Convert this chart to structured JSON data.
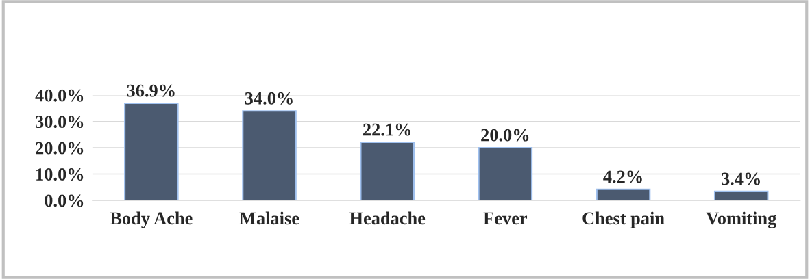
{
  "chart_data": {
    "type": "bar",
    "categories": [
      "Body Ache",
      "Malaise",
      "Headache",
      "Fever",
      "Chest pain",
      "Vomiting"
    ],
    "values": [
      36.9,
      34.0,
      22.1,
      20.0,
      4.2,
      3.4
    ],
    "value_labels": [
      "36.9%",
      "34.0%",
      "22.1%",
      "20.0%",
      "4.2%",
      "3.4%"
    ],
    "color": "#4b5a70",
    "ylim": [
      0,
      40
    ],
    "yticks": [
      {
        "value": 0,
        "label": "0.0%"
      },
      {
        "value": 10,
        "label": "10.0%"
      },
      {
        "value": 20,
        "label": "20.0%"
      },
      {
        "value": 30,
        "label": "30.0%"
      },
      {
        "value": 40,
        "label": "40.0%"
      }
    ],
    "grid": "y",
    "legend": false
  }
}
